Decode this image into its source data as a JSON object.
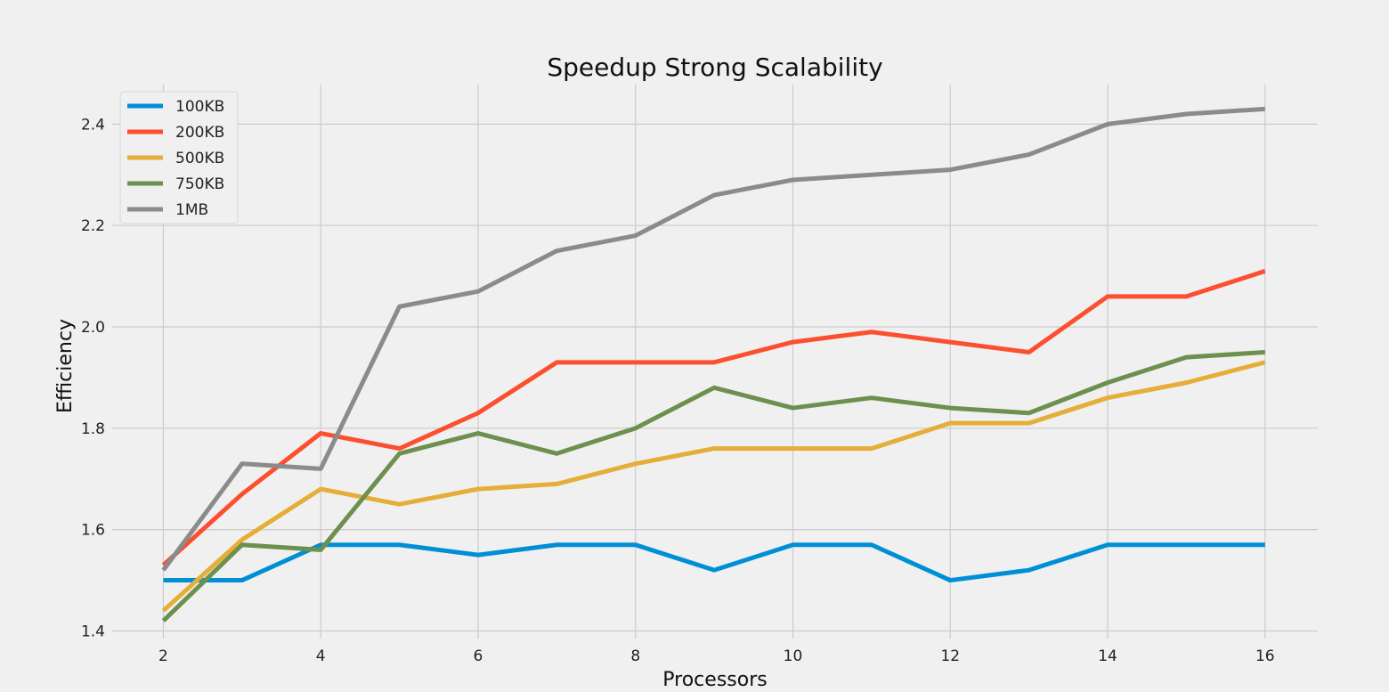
{
  "chart_data": {
    "type": "line",
    "title": "Speedup Strong Scalability",
    "xlabel": "Processors",
    "ylabel": "Efficiency",
    "x": [
      2,
      3,
      4,
      5,
      6,
      7,
      8,
      9,
      10,
      11,
      12,
      13,
      14,
      15,
      16
    ],
    "xlim": [
      1.35,
      16.67
    ],
    "ylim": [
      1.385,
      2.478
    ],
    "xticks": [
      2,
      4,
      6,
      8,
      10,
      12,
      14,
      16
    ],
    "yticks": [
      1.4,
      1.6,
      1.8,
      2.0,
      2.2,
      2.4
    ],
    "ytick_labels": [
      "1.4",
      "1.6",
      "1.8",
      "2.0",
      "2.2",
      "2.4"
    ],
    "grid": true,
    "legend_position": "top-left",
    "series": [
      {
        "name": "100KB",
        "color": "#008fd5",
        "values": [
          1.5,
          1.5,
          1.57,
          1.57,
          1.55,
          1.57,
          1.57,
          1.52,
          1.57,
          1.57,
          1.5,
          1.52,
          1.57,
          1.57,
          1.57
        ]
      },
      {
        "name": "200KB",
        "color": "#fc4f30",
        "values": [
          1.53,
          1.67,
          1.79,
          1.76,
          1.83,
          1.93,
          1.93,
          1.93,
          1.97,
          1.99,
          1.97,
          1.95,
          2.06,
          2.06,
          2.11
        ]
      },
      {
        "name": "500KB",
        "color": "#e5ae38",
        "values": [
          1.44,
          1.58,
          1.68,
          1.65,
          1.68,
          1.69,
          1.73,
          1.76,
          1.76,
          1.76,
          1.81,
          1.81,
          1.86,
          1.89,
          1.93
        ]
      },
      {
        "name": "750KB",
        "color": "#6d904f",
        "values": [
          1.42,
          1.57,
          1.56,
          1.75,
          1.79,
          1.75,
          1.8,
          1.88,
          1.84,
          1.86,
          1.84,
          1.83,
          1.89,
          1.94,
          1.95
        ]
      },
      {
        "name": "1MB",
        "color": "#8b8b8b",
        "values": [
          1.52,
          1.73,
          1.72,
          2.04,
          2.07,
          2.15,
          2.18,
          2.26,
          2.29,
          2.3,
          2.31,
          2.34,
          2.4,
          2.42,
          2.43
        ]
      }
    ]
  }
}
